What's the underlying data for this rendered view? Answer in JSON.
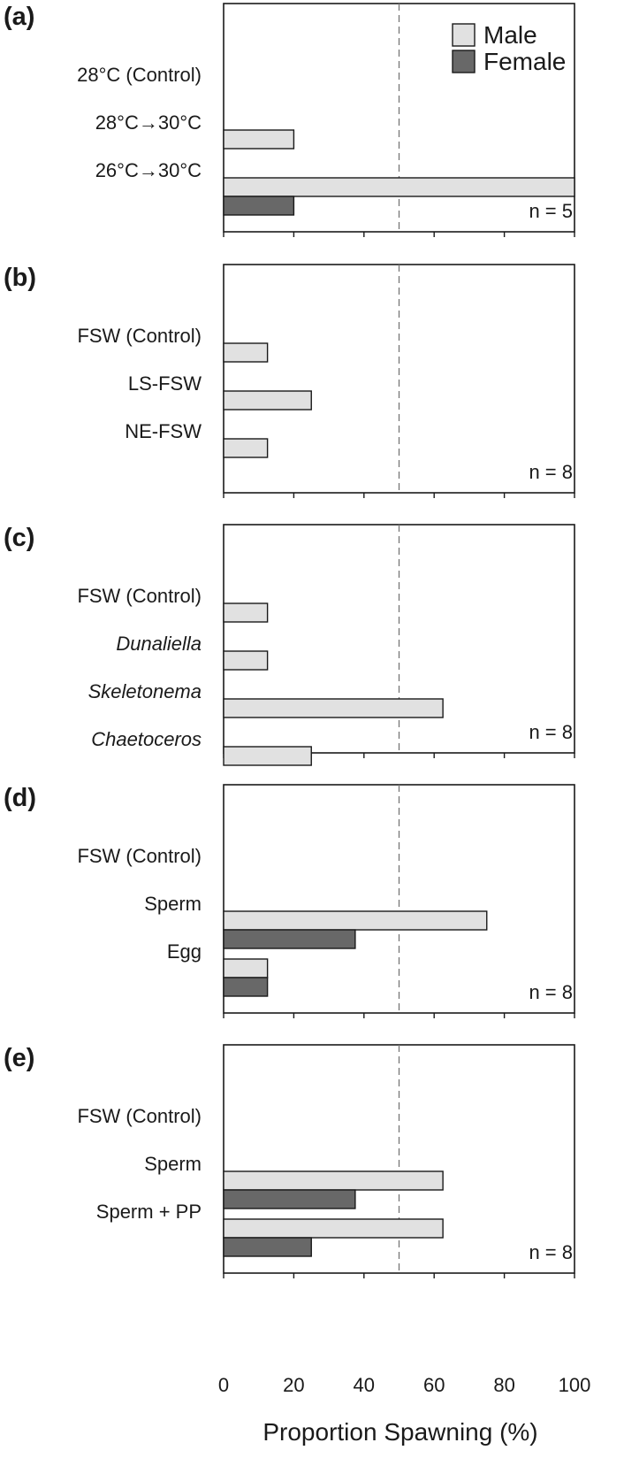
{
  "chart_data": {
    "type": "bar",
    "orientation": "horizontal",
    "xlabel": "Proportion Spawning (%)",
    "xlim": [
      0,
      100
    ],
    "xticks": [
      "0",
      "20",
      "40",
      "60",
      "80",
      "100"
    ],
    "reference_line": 50,
    "legend": {
      "position": "top-right",
      "entries": [
        {
          "name": "Male",
          "color": "#e1e1e1"
        },
        {
          "name": "Female",
          "color": "#686868"
        }
      ]
    },
    "panels": [
      {
        "letter": "(a)",
        "n_label": "n = 5",
        "categories": [
          {
            "label": "28°C (Control)",
            "italic": false
          },
          {
            "label": "28°C→30°C",
            "italic": false
          },
          {
            "label": "26°C→30°C",
            "italic": false
          }
        ],
        "series": [
          {
            "name": "Male",
            "values": [
              0,
              20,
              100
            ]
          },
          {
            "name": "Female",
            "values": [
              0,
              0,
              20
            ]
          }
        ]
      },
      {
        "letter": "(b)",
        "n_label": "n = 8",
        "categories": [
          {
            "label": "FSW (Control)",
            "italic": false
          },
          {
            "label": "LS-FSW",
            "italic": false
          },
          {
            "label": "NE-FSW",
            "italic": false
          }
        ],
        "series": [
          {
            "name": "Male",
            "values": [
              12.5,
              25,
              12.5
            ]
          },
          {
            "name": "Female",
            "values": [
              0,
              0,
              0
            ]
          }
        ]
      },
      {
        "letter": "(c)",
        "n_label": "n = 8",
        "categories": [
          {
            "label": "FSW (Control)",
            "italic": false
          },
          {
            "label": "Dunaliella",
            "italic": true
          },
          {
            "label": "Skeletonema",
            "italic": true
          },
          {
            "label": "Chaetoceros",
            "italic": true
          }
        ],
        "series": [
          {
            "name": "Male",
            "values": [
              12.5,
              12.5,
              62.5,
              25
            ]
          },
          {
            "name": "Female",
            "values": [
              0,
              0,
              0,
              0
            ]
          }
        ]
      },
      {
        "letter": "(d)",
        "n_label": "n = 8",
        "categories": [
          {
            "label": "FSW (Control)",
            "italic": false
          },
          {
            "label": "Sperm",
            "italic": false
          },
          {
            "label": "Egg",
            "italic": false
          }
        ],
        "series": [
          {
            "name": "Male",
            "values": [
              0,
              75,
              12.5
            ]
          },
          {
            "name": "Female",
            "values": [
              0,
              37.5,
              12.5
            ]
          }
        ]
      },
      {
        "letter": "(e)",
        "n_label": "n = 8",
        "categories": [
          {
            "label": "FSW (Control)",
            "italic": false
          },
          {
            "label": "Sperm",
            "italic": false
          },
          {
            "label": "Sperm + PP",
            "italic": false
          }
        ],
        "series": [
          {
            "name": "Male",
            "values": [
              0,
              62.5,
              62.5
            ]
          },
          {
            "name": "Female",
            "values": [
              0,
              37.5,
              25
            ]
          }
        ]
      }
    ]
  }
}
